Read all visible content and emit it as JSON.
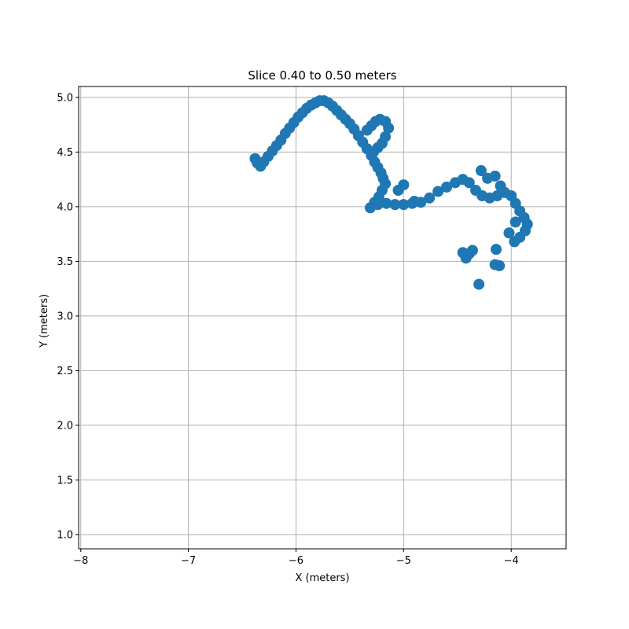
{
  "chart_data": {
    "type": "scatter",
    "title": "Slice 0.40 to 0.50 meters",
    "xlabel": "X (meters)",
    "ylabel": "Y (meters)",
    "xlim": [
      -8.02,
      -3.49
    ],
    "ylim": [
      0.87,
      5.1
    ],
    "xticks": [
      -8,
      -7,
      -6,
      -5,
      -4
    ],
    "xtick_labels": [
      "−8",
      "−7",
      "−6",
      "−5",
      "−4"
    ],
    "yticks": [
      1.0,
      1.5,
      2.0,
      2.5,
      3.0,
      3.5,
      4.0,
      4.5,
      5.0
    ],
    "ytick_labels": [
      "1.0",
      "1.5",
      "2.0",
      "2.5",
      "3.0",
      "3.5",
      "4.0",
      "4.5",
      "5.0"
    ],
    "grid": true,
    "marker_color": "#1f77b4",
    "series": [
      {
        "points": [
          [
            -6.38,
            4.44
          ],
          [
            -6.36,
            4.4
          ],
          [
            -6.33,
            4.37
          ],
          [
            -6.3,
            4.41
          ],
          [
            -6.26,
            4.46
          ],
          [
            -6.22,
            4.51
          ],
          [
            -6.18,
            4.56
          ],
          [
            -6.14,
            4.61
          ],
          [
            -6.1,
            4.67
          ],
          [
            -6.06,
            4.72
          ],
          [
            -6.02,
            4.77
          ],
          [
            -5.98,
            4.82
          ],
          [
            -5.94,
            4.86
          ],
          [
            -5.9,
            4.9
          ],
          [
            -5.86,
            4.93
          ],
          [
            -5.82,
            4.95
          ],
          [
            -5.78,
            4.97
          ],
          [
            -5.74,
            4.97
          ],
          [
            -5.7,
            4.95
          ],
          [
            -5.66,
            4.92
          ],
          [
            -5.62,
            4.88
          ],
          [
            -5.58,
            4.84
          ],
          [
            -5.54,
            4.8
          ],
          [
            -5.5,
            4.76
          ],
          [
            -5.46,
            4.71
          ],
          [
            -5.42,
            4.65
          ],
          [
            -5.38,
            4.59
          ],
          [
            -5.34,
            4.53
          ],
          [
            -5.3,
            4.47
          ],
          [
            -5.27,
            4.41
          ],
          [
            -5.24,
            4.36
          ],
          [
            -5.21,
            4.31
          ],
          [
            -5.19,
            4.26
          ],
          [
            -5.17,
            4.21
          ],
          [
            -5.2,
            4.15
          ],
          [
            -5.23,
            4.09
          ],
          [
            -5.27,
            4.04
          ],
          [
            -5.31,
            3.99
          ],
          [
            -5.24,
            4.02
          ],
          [
            -5.16,
            4.03
          ],
          [
            -5.08,
            4.02
          ],
          [
            -5.0,
            4.02
          ],
          [
            -4.92,
            4.03
          ],
          [
            -4.84,
            4.04
          ],
          [
            -4.76,
            4.08
          ],
          [
            -4.68,
            4.14
          ],
          [
            -4.6,
            4.18
          ],
          [
            -4.52,
            4.22
          ],
          [
            -4.45,
            4.25
          ],
          [
            -4.39,
            4.22
          ],
          [
            -4.33,
            4.15
          ],
          [
            -4.27,
            4.1
          ],
          [
            -4.2,
            4.08
          ],
          [
            -4.13,
            4.1
          ],
          [
            -4.06,
            4.13
          ],
          [
            -4.0,
            4.1
          ],
          [
            -3.96,
            4.03
          ],
          [
            -3.92,
            3.96
          ],
          [
            -3.88,
            3.9
          ],
          [
            -3.85,
            3.84
          ],
          [
            -3.87,
            3.78
          ],
          [
            -3.92,
            3.72
          ],
          [
            -3.97,
            3.68
          ],
          [
            -4.02,
            3.76
          ],
          [
            -3.96,
            3.86
          ],
          [
            -5.34,
            4.7
          ],
          [
            -5.3,
            4.74
          ],
          [
            -5.26,
            4.78
          ],
          [
            -5.22,
            4.8
          ],
          [
            -5.17,
            4.78
          ],
          [
            -5.14,
            4.72
          ],
          [
            -5.17,
            4.64
          ],
          [
            -5.2,
            4.58
          ],
          [
            -5.24,
            4.54
          ],
          [
            -5.28,
            4.5
          ],
          [
            -4.45,
            3.58
          ],
          [
            -4.42,
            3.53
          ],
          [
            -4.39,
            3.57
          ],
          [
            -4.36,
            3.6
          ],
          [
            -4.14,
            3.61
          ],
          [
            -4.11,
            3.46
          ],
          [
            -4.15,
            3.47
          ],
          [
            -4.3,
            3.29
          ],
          [
            -4.28,
            4.33
          ],
          [
            -4.22,
            4.26
          ],
          [
            -4.15,
            4.28
          ],
          [
            -4.1,
            4.19
          ],
          [
            -5.0,
            4.2
          ],
          [
            -5.05,
            4.15
          ],
          [
            -4.9,
            4.05
          ]
        ]
      }
    ]
  }
}
